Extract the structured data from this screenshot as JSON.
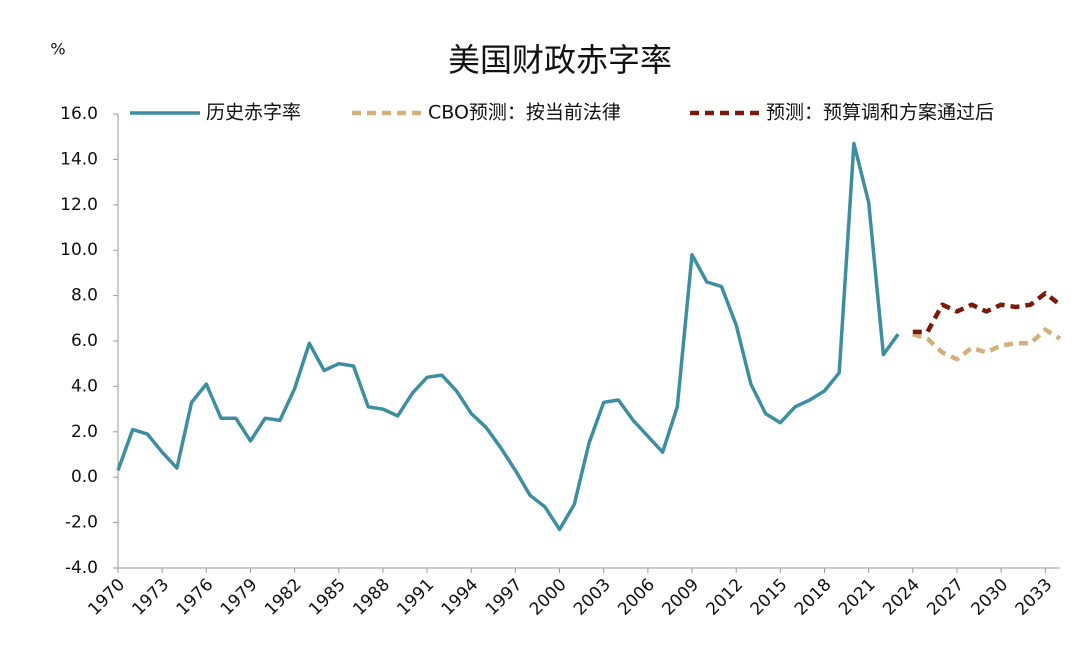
{
  "chart_data": {
    "type": "line",
    "title": "美国财政赤字率",
    "y_unit": "%",
    "x": [
      1970,
      1971,
      1972,
      1973,
      1974,
      1975,
      1976,
      1977,
      1978,
      1979,
      1980,
      1981,
      1982,
      1983,
      1984,
      1985,
      1986,
      1987,
      1988,
      1989,
      1990,
      1991,
      1992,
      1993,
      1994,
      1995,
      1996,
      1997,
      1998,
      1999,
      2000,
      2001,
      2002,
      2003,
      2004,
      2005,
      2006,
      2007,
      2008,
      2009,
      2010,
      2011,
      2012,
      2013,
      2014,
      2015,
      2016,
      2017,
      2018,
      2019,
      2020,
      2021,
      2022,
      2023,
      2024,
      2025,
      2026,
      2027,
      2028,
      2029,
      2030,
      2031,
      2032,
      2033,
      2034
    ],
    "series": [
      {
        "name": "历史赤字率",
        "color": "#3d8ea0",
        "dashed": false,
        "values": [
          0.3,
          2.1,
          1.9,
          1.1,
          0.4,
          3.3,
          4.1,
          2.6,
          2.6,
          1.6,
          2.6,
          2.5,
          3.9,
          5.9,
          4.7,
          5.0,
          4.9,
          3.1,
          3.0,
          2.7,
          3.7,
          4.4,
          4.5,
          3.8,
          2.8,
          2.2,
          1.3,
          0.3,
          -0.8,
          -1.3,
          -2.3,
          -1.2,
          1.5,
          3.3,
          3.4,
          2.5,
          1.8,
          1.1,
          3.1,
          9.8,
          8.6,
          8.4,
          6.7,
          4.1,
          2.8,
          2.4,
          3.1,
          3.4,
          3.8,
          4.6,
          14.7,
          12.1,
          5.4,
          6.3,
          null,
          null,
          null,
          null,
          null,
          null,
          null,
          null,
          null,
          null,
          null
        ]
      },
      {
        "name": "CBO预测：按当前法律",
        "color": "#d4b07a",
        "dashed": true,
        "values": [
          null,
          null,
          null,
          null,
          null,
          null,
          null,
          null,
          null,
          null,
          null,
          null,
          null,
          null,
          null,
          null,
          null,
          null,
          null,
          null,
          null,
          null,
          null,
          null,
          null,
          null,
          null,
          null,
          null,
          null,
          null,
          null,
          null,
          null,
          null,
          null,
          null,
          null,
          null,
          null,
          null,
          null,
          null,
          null,
          null,
          null,
          null,
          null,
          null,
          null,
          null,
          null,
          null,
          null,
          6.3,
          6.1,
          5.5,
          5.2,
          5.7,
          5.5,
          5.8,
          5.9,
          5.9,
          6.5,
          6.1
        ]
      },
      {
        "name": "预测：预算调和方案通过后",
        "color": "#7a1a0a",
        "dashed": true,
        "values": [
          null,
          null,
          null,
          null,
          null,
          null,
          null,
          null,
          null,
          null,
          null,
          null,
          null,
          null,
          null,
          null,
          null,
          null,
          null,
          null,
          null,
          null,
          null,
          null,
          null,
          null,
          null,
          null,
          null,
          null,
          null,
          null,
          null,
          null,
          null,
          null,
          null,
          null,
          null,
          null,
          null,
          null,
          null,
          null,
          null,
          null,
          null,
          null,
          null,
          null,
          null,
          null,
          null,
          null,
          6.4,
          6.4,
          7.6,
          7.3,
          7.6,
          7.3,
          7.6,
          7.5,
          7.6,
          8.1,
          7.6
        ]
      }
    ],
    "xlim": [
      1970,
      2034
    ],
    "xticks": [
      1970,
      1973,
      1976,
      1979,
      1982,
      1985,
      1988,
      1991,
      1994,
      1997,
      2000,
      2003,
      2006,
      2009,
      2012,
      2015,
      2018,
      2021,
      2024,
      2027,
      2030,
      2033
    ],
    "ylim": [
      -4,
      16
    ],
    "yticks": [
      {
        "value": -4,
        "label": "-4.0"
      },
      {
        "value": -2,
        "label": "-2.0"
      },
      {
        "value": 0,
        "label": "0.0"
      },
      {
        "value": 2,
        "label": "2.0"
      },
      {
        "value": 4,
        "label": "4.0"
      },
      {
        "value": 6,
        "label": "6.0"
      },
      {
        "value": 8,
        "label": "8.0"
      },
      {
        "value": 10,
        "label": "10.0"
      },
      {
        "value": 12,
        "label": "12.0"
      },
      {
        "value": 14,
        "label": "14.0"
      },
      {
        "value": 16,
        "label": "16.0"
      }
    ],
    "grid": false
  }
}
